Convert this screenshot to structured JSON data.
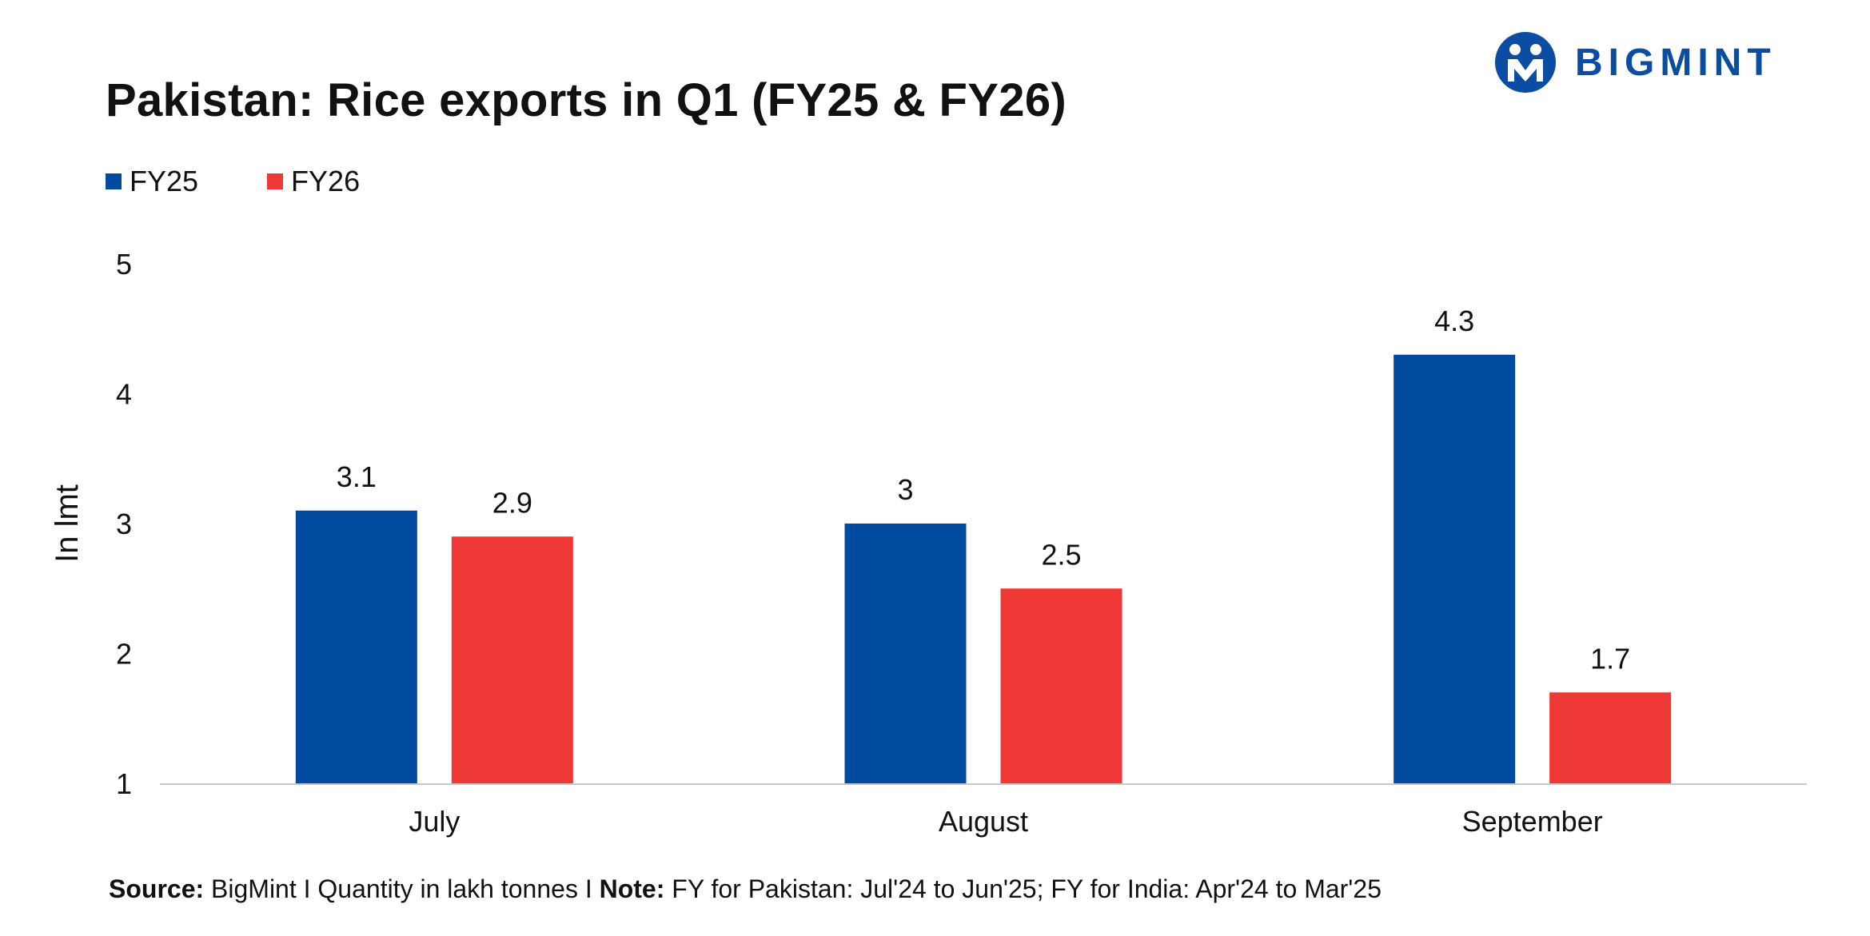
{
  "title": "Pakistan: Rice exports in Q1 (FY25 & FY26)",
  "brand": {
    "name": "BIGMINT",
    "logo_icon": "bigmint-logo-icon",
    "color": "#0b4da2"
  },
  "colors": {
    "FY25": "#004a9f",
    "FY26": "#ee3835",
    "axis": "#c8c8c8"
  },
  "chart_data": {
    "type": "bar",
    "title": "Pakistan: Rice exports in Q1 (FY25 & FY26)",
    "categories": [
      "July",
      "August",
      "September"
    ],
    "series": [
      {
        "name": "FY25",
        "values": [
          3.1,
          3,
          4.3
        ],
        "labels": [
          "3.1",
          "3",
          "4.3"
        ]
      },
      {
        "name": "FY26",
        "values": [
          2.9,
          2.5,
          1.7
        ],
        "labels": [
          "2.9",
          "2.5",
          "1.7"
        ]
      }
    ],
    "xlabel": "",
    "ylabel": "In lmt",
    "ylim": [
      1,
      5
    ],
    "yticks": [
      "1",
      "2",
      "3",
      "4",
      "5"
    ],
    "grid": false,
    "legend": "top-left"
  },
  "footer": {
    "source_label": "Source:",
    "source_text": " BigMint I Quantity in lakh tonnes I ",
    "note_label": "Note:",
    "note_text": " FY for Pakistan: Jul'24 to Jun'25; FY for India: Apr'24 to Mar'25"
  }
}
